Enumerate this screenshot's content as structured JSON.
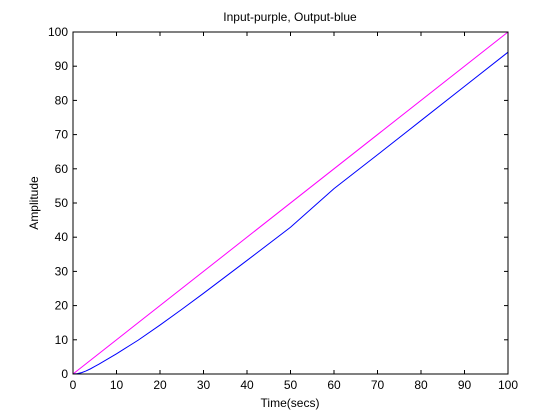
{
  "chart_data": {
    "type": "line",
    "title": "Input-purple, Output-blue",
    "xlabel": "Time(secs)",
    "ylabel": "Amplitude",
    "xlim": [
      0,
      100
    ],
    "ylim": [
      0,
      100
    ],
    "xticks": [
      0,
      10,
      20,
      30,
      40,
      50,
      60,
      70,
      80,
      90,
      100
    ],
    "yticks": [
      0,
      10,
      20,
      30,
      40,
      50,
      60,
      70,
      80,
      90,
      100
    ],
    "grid": false,
    "series": [
      {
        "color": "#ff00ff",
        "x": [
          0,
          100
        ],
        "y": [
          0,
          100
        ]
      },
      {
        "color": "#0000ff",
        "x": [
          0,
          1,
          2,
          3,
          4,
          5,
          6,
          8,
          10,
          12,
          15,
          20,
          25,
          30,
          40,
          50,
          60,
          70,
          80,
          90,
          100
        ],
        "y": [
          0,
          0.1,
          0.4,
          0.9,
          1.5,
          2.2,
          2.9,
          4.4,
          5.9,
          7.5,
          9.9,
          14.3,
          18.9,
          23.6,
          33.2,
          42.9,
          54.2,
          64.1,
          74.1,
          84.1,
          94.1
        ]
      }
    ]
  }
}
